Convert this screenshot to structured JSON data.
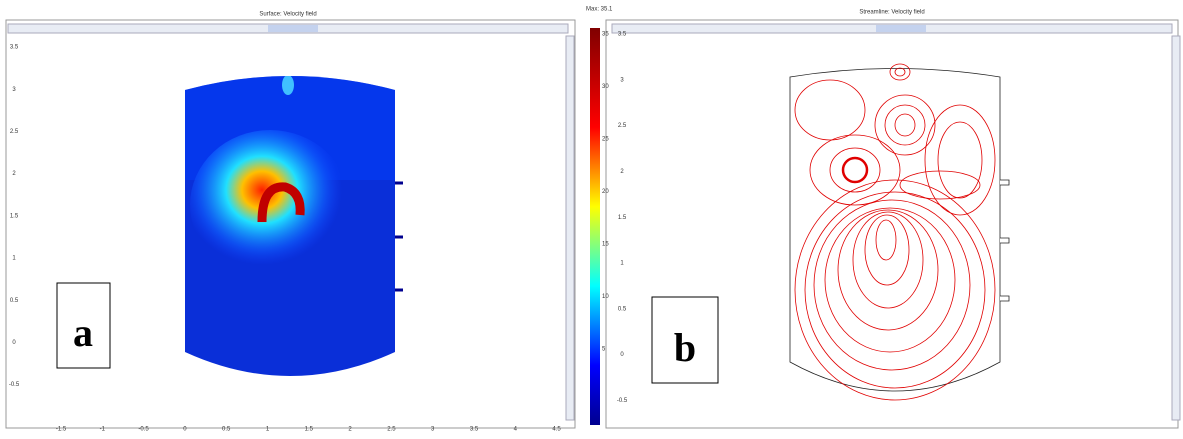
{
  "panels": [
    {
      "title": "Surface: Velocity field",
      "label": "a",
      "y_ticks": [
        "3.5",
        "3",
        "2.5",
        "2",
        "1.5",
        "1",
        "0.5",
        "0",
        "-0.5"
      ],
      "x_ticks": [
        "-1.5",
        "-1",
        "-0.5",
        "0",
        "0.5",
        "1",
        "1.5",
        "2",
        "2.5",
        "3",
        "3.5",
        "4",
        "4.5"
      ]
    },
    {
      "title": "Streamline: Velocity field",
      "label": "b",
      "y_ticks": [
        "3.5",
        "3",
        "2.5",
        "2",
        "1.5",
        "1",
        "0.5",
        "0",
        "-0.5"
      ]
    }
  ],
  "colorbar": {
    "max_label": "Max: 35.1",
    "ticks": [
      "35",
      "30",
      "25",
      "20",
      "15",
      "10",
      "5"
    ]
  }
}
